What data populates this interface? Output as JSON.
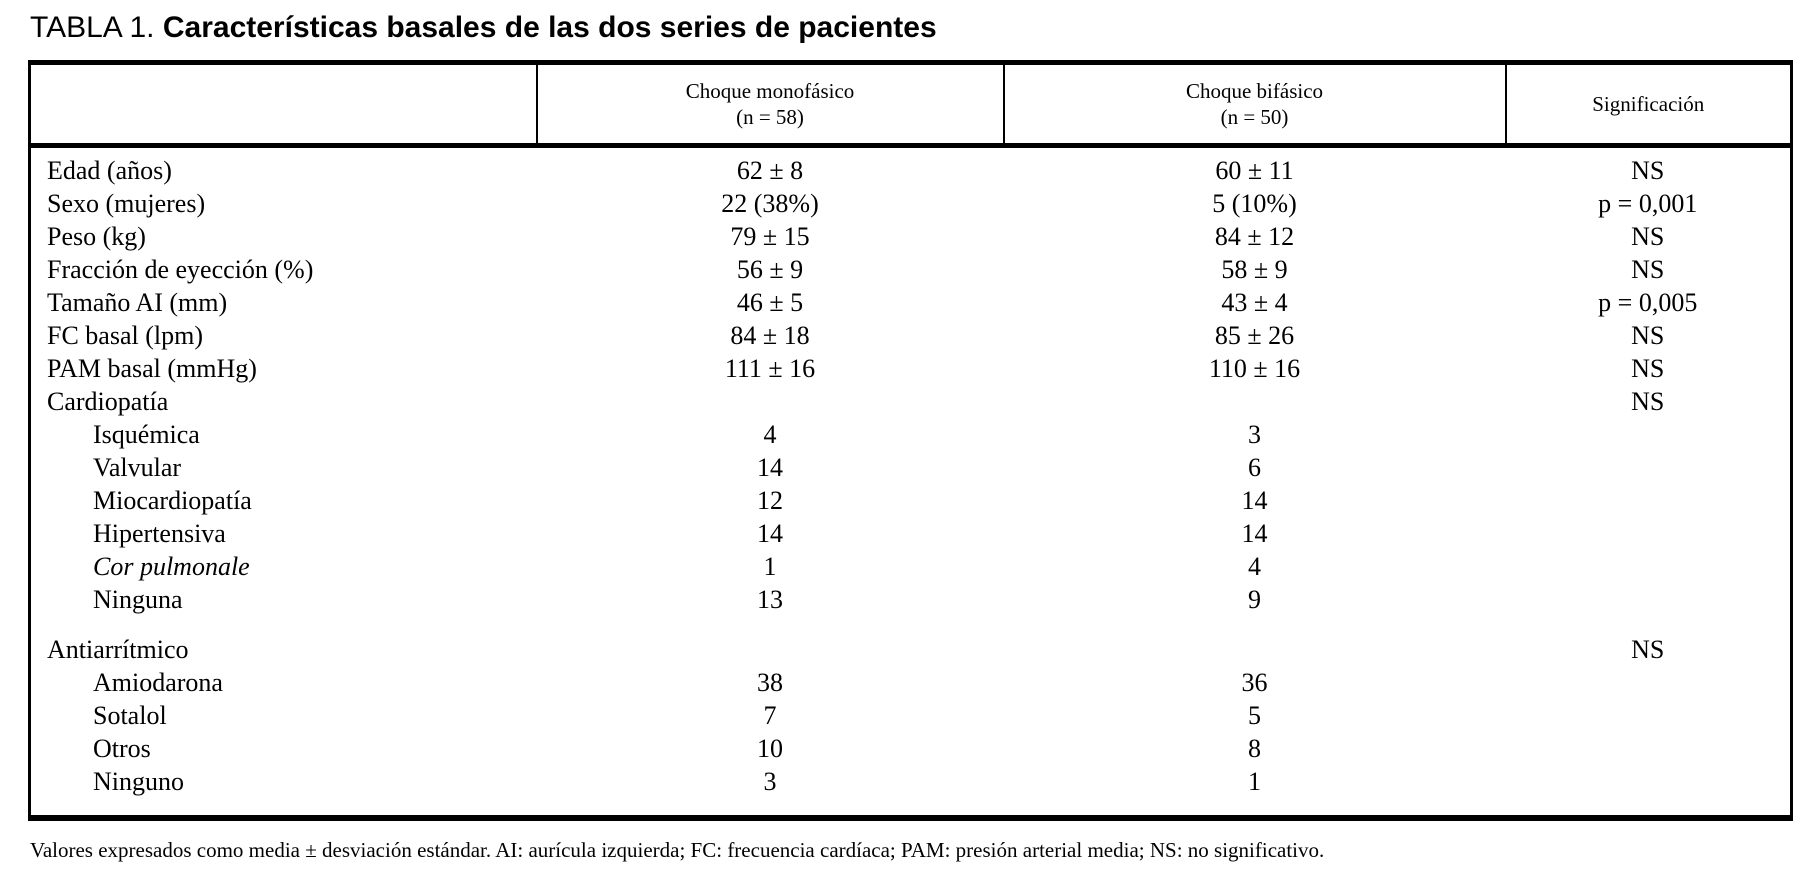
{
  "page": {
    "background_color": "#ffffff",
    "text_color": "#000000",
    "border_color": "#000000"
  },
  "title": {
    "prefix": "TABLA 1.",
    "text": "Características basales de las dos series de pacientes"
  },
  "table": {
    "header": {
      "col1": "",
      "col2_line1": "Choque monofásico",
      "col2_line2": "(n = 58)",
      "col3_line1": "Choque bifásico",
      "col3_line2": "(n = 50)",
      "col4": "Significación"
    },
    "rows": [
      {
        "label": "Edad (años)",
        "indent": false,
        "italic": false,
        "spacer_before": false,
        "mono": "62 ± 8",
        "bi": "60 ± 11",
        "sig": "NS"
      },
      {
        "label": "Sexo (mujeres)",
        "indent": false,
        "italic": false,
        "spacer_before": false,
        "mono": "22 (38%)",
        "bi": "5 (10%)",
        "sig": "p = 0,001"
      },
      {
        "label": "Peso (kg)",
        "indent": false,
        "italic": false,
        "spacer_before": false,
        "mono": "79 ± 15",
        "bi": "84 ± 12",
        "sig": "NS"
      },
      {
        "label": "Fracción de eyección (%)",
        "indent": false,
        "italic": false,
        "spacer_before": false,
        "mono": "56 ± 9",
        "bi": "58 ± 9",
        "sig": "NS"
      },
      {
        "label": "Tamaño AI (mm)",
        "indent": false,
        "italic": false,
        "spacer_before": false,
        "mono": "46 ± 5",
        "bi": "43 ± 4",
        "sig": "p = 0,005"
      },
      {
        "label": "FC basal (lpm)",
        "indent": false,
        "italic": false,
        "spacer_before": false,
        "mono": "84 ± 18",
        "bi": "85 ± 26",
        "sig": "NS"
      },
      {
        "label": "PAM basal (mmHg)",
        "indent": false,
        "italic": false,
        "spacer_before": false,
        "mono": "111 ± 16",
        "bi": "110 ± 16",
        "sig": "NS"
      },
      {
        "label": "Cardiopatía",
        "indent": false,
        "italic": false,
        "spacer_before": false,
        "mono": "",
        "bi": "",
        "sig": "NS"
      },
      {
        "label": "Isquémica",
        "indent": true,
        "italic": false,
        "spacer_before": false,
        "mono": "4",
        "bi": "3",
        "sig": ""
      },
      {
        "label": "Valvular",
        "indent": true,
        "italic": false,
        "spacer_before": false,
        "mono": "14",
        "bi": "6",
        "sig": ""
      },
      {
        "label": "Miocardiopatía",
        "indent": true,
        "italic": false,
        "spacer_before": false,
        "mono": "12",
        "bi": "14",
        "sig": ""
      },
      {
        "label": "Hipertensiva",
        "indent": true,
        "italic": false,
        "spacer_before": false,
        "mono": "14",
        "bi": "14",
        "sig": ""
      },
      {
        "label": "Cor pulmonale",
        "indent": true,
        "italic": true,
        "spacer_before": false,
        "mono": "1",
        "bi": "4",
        "sig": ""
      },
      {
        "label": "Ninguna",
        "indent": true,
        "italic": false,
        "spacer_before": false,
        "mono": "13",
        "bi": "9",
        "sig": ""
      },
      {
        "label": "Antiarrítmico",
        "indent": false,
        "italic": false,
        "spacer_before": true,
        "mono": "",
        "bi": "",
        "sig": "NS"
      },
      {
        "label": "Amiodarona",
        "indent": true,
        "italic": false,
        "spacer_before": false,
        "mono": "38",
        "bi": "36",
        "sig": ""
      },
      {
        "label": "Sotalol",
        "indent": true,
        "italic": false,
        "spacer_before": false,
        "mono": "7",
        "bi": "5",
        "sig": ""
      },
      {
        "label": "Otros",
        "indent": true,
        "italic": false,
        "spacer_before": false,
        "mono": "10",
        "bi": "8",
        "sig": ""
      },
      {
        "label": "Ninguno",
        "indent": true,
        "italic": false,
        "spacer_before": false,
        "mono": "3",
        "bi": "1",
        "sig": ""
      }
    ]
  },
  "footnote": "Valores expresados como media ± desviación estándar. AI: aurícula izquierda; FC: frecuencia cardíaca; PAM: presión arterial media; NS: no significativo."
}
